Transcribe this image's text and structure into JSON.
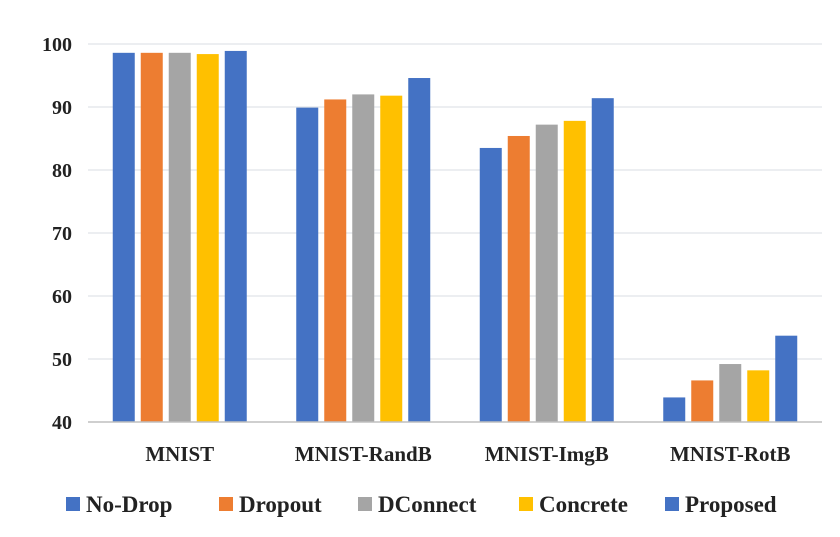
{
  "chart_data": {
    "type": "bar",
    "categories": [
      "MNIST",
      "MNIST-RandB",
      "MNIST-ImgB",
      "MNIST-RotB"
    ],
    "series": [
      {
        "name": "No-Drop",
        "color": "#4472c4",
        "values": [
          98.6,
          89.9,
          83.5,
          43.9
        ]
      },
      {
        "name": "Dropout",
        "color": "#ed7d31",
        "values": [
          98.6,
          91.2,
          85.4,
          46.6
        ]
      },
      {
        "name": "DConnect",
        "color": "#a5a5a5",
        "values": [
          98.6,
          92.0,
          87.2,
          49.2
        ]
      },
      {
        "name": "Concrete",
        "color": "#ffc000",
        "values": [
          98.4,
          91.8,
          87.8,
          48.2
        ]
      },
      {
        "name": "Proposed",
        "color": "#4472c4",
        "values": [
          98.9,
          94.6,
          91.4,
          53.7
        ]
      }
    ],
    "title": "",
    "xlabel": "",
    "ylabel": "",
    "ylim": [
      40,
      100
    ],
    "yticks": [
      40,
      50,
      60,
      70,
      80,
      90,
      100
    ],
    "grid": true,
    "legend": "bottom"
  }
}
